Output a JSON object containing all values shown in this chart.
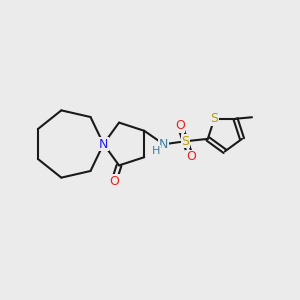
{
  "background_color": "#ebebeb",
  "bond_color": "#1a1a1a",
  "N_color": "#2020ee",
  "O_color": "#ee2020",
  "S_color": "#b8a000",
  "NH_color": "#4080a0",
  "figsize": [
    3.0,
    3.0
  ],
  "dpi": 100,
  "xlim": [
    0,
    10
  ],
  "ylim": [
    0,
    10
  ]
}
